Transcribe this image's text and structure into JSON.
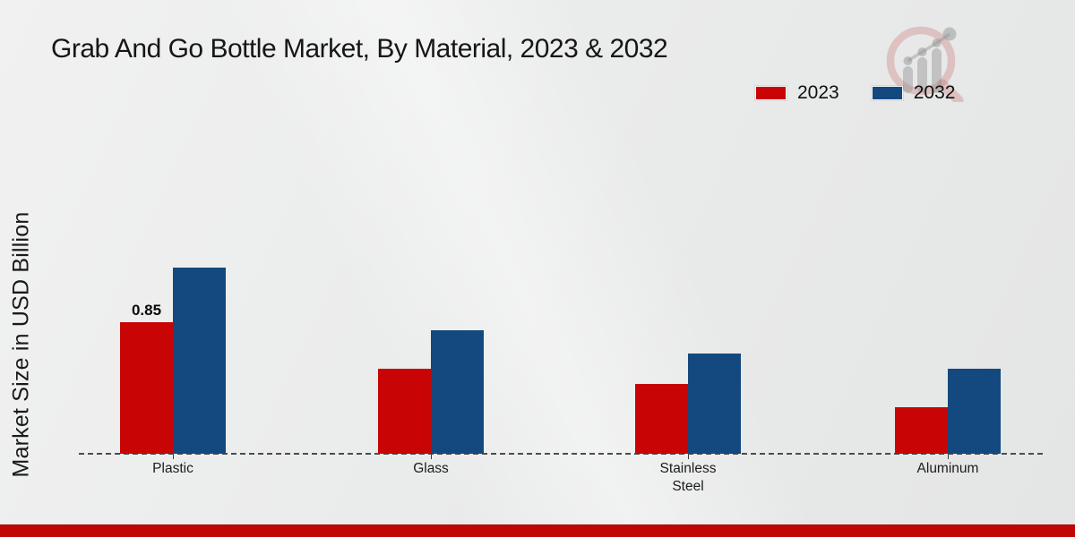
{
  "header": {
    "title": "Grab And Go Bottle Market, By Material, 2023 & 2032"
  },
  "axes": {
    "ylabel": "Market Size in USD Billion"
  },
  "legend": {
    "items": [
      {
        "label": "2023",
        "color": "#c80404"
      },
      {
        "label": "2032",
        "color": "#14497f"
      }
    ]
  },
  "chart_data": {
    "type": "bar",
    "title": "Grab And Go Bottle Market, By Material, 2023 & 2032",
    "categories": [
      "Plastic",
      "Glass",
      "Stainless Steel",
      "Aluminum"
    ],
    "series": [
      {
        "name": "2023",
        "color": "#c80404",
        "values": [
          0.85,
          0.55,
          0.45,
          0.3
        ]
      },
      {
        "name": "2032",
        "color": "#14497f",
        "values": [
          1.2,
          0.8,
          0.65,
          0.55
        ]
      }
    ],
    "xlabel": "",
    "ylabel": "Market Size in USD Billion",
    "ylim": [
      0,
      1.4
    ],
    "grid": false,
    "legend_position": "top-right",
    "annotations": [
      {
        "series": "2023",
        "category": "Plastic",
        "text": "0.85"
      }
    ]
  },
  "footer": {
    "bar_color": "#c10505"
  }
}
